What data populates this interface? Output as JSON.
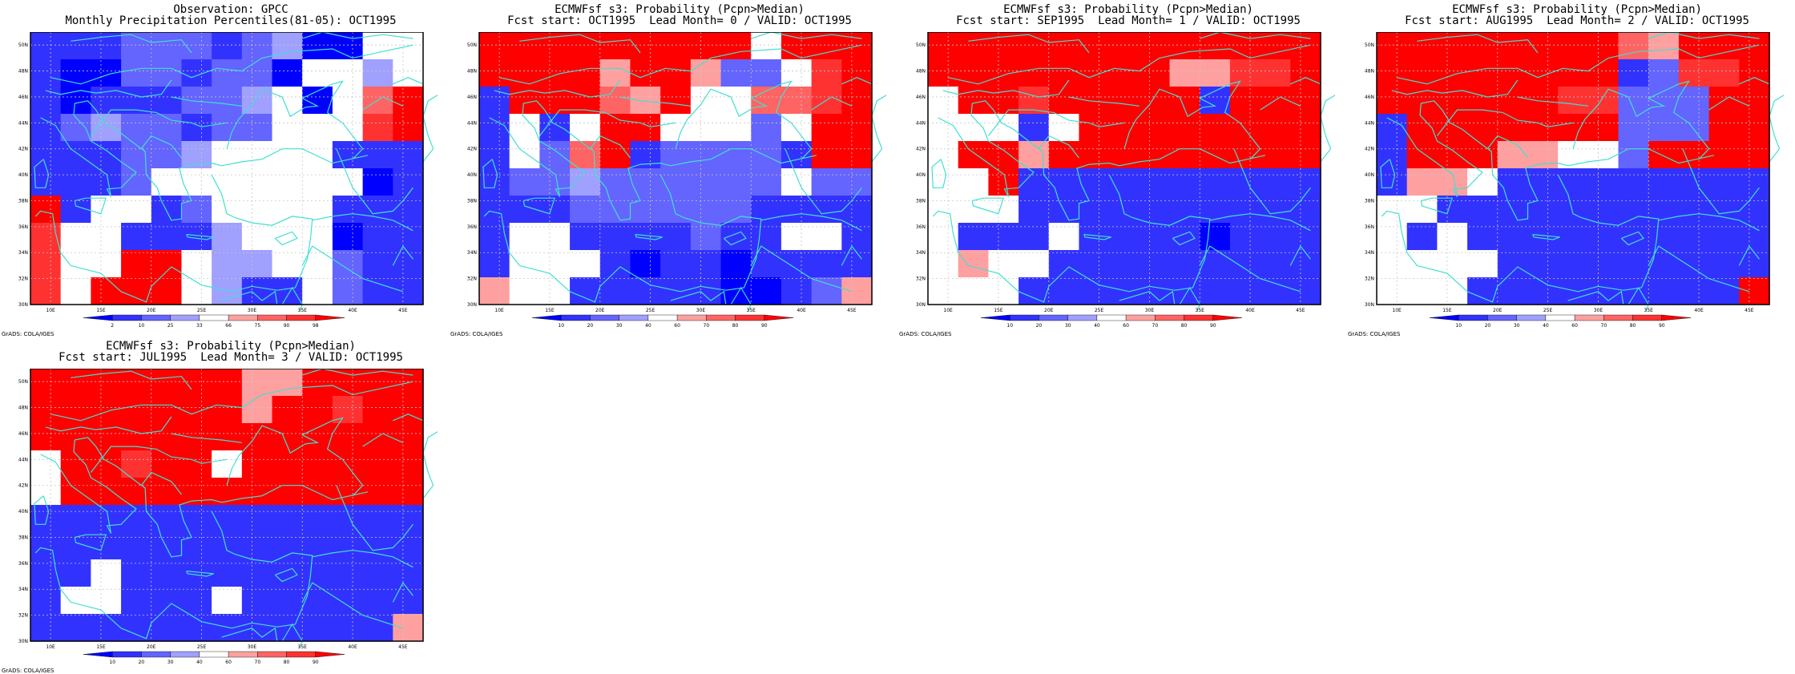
{
  "panels": [
    {
      "title1": "Observation: GPCC",
      "title2": "Monthly Precipitation Percentiles(81-05): OCT1995",
      "colorbar_labels": [
        "2",
        "10",
        "25",
        "33",
        "66",
        "75",
        "90",
        "98"
      ],
      "footer": "GrADS: COLA/IGES"
    },
    {
      "title1": "ECMWFsf s3: Probability (Pcpn>Median)",
      "title2": "Fcst start: OCT1995  Lead Month= 0 / VALID: OCT1995",
      "colorbar_labels": [
        "10",
        "20",
        "30",
        "40",
        "60",
        "70",
        "80",
        "90"
      ],
      "footer": "GrADS: COLA/IGES"
    },
    {
      "title1": "ECMWFsf s3: Probability (Pcpn>Median)",
      "title2": "Fcst start: SEP1995  Lead Month= 1 / VALID: OCT1995",
      "colorbar_labels": [
        "10",
        "20",
        "30",
        "40",
        "60",
        "70",
        "80",
        "90"
      ],
      "footer": "GrADS: COLA/IGES"
    },
    {
      "title1": "ECMWFsf s3: Probability (Pcpn>Median)",
      "title2": "Fcst start: AUG1995  Lead Month= 2 / VALID: OCT1995",
      "colorbar_labels": [
        "10",
        "20",
        "30",
        "40",
        "60",
        "70",
        "80",
        "90"
      ],
      "footer": "GrADS: COLA/IGES"
    },
    {
      "title1": "ECMWFsf s3: Probability (Pcpn>Median)",
      "title2": "Fcst start: JUL1995  Lead Month= 3 / VALID: OCT1995",
      "colorbar_labels": [
        "10",
        "20",
        "30",
        "40",
        "60",
        "70",
        "80",
        "90"
      ],
      "footer": "GrADS: COLA/IGES"
    }
  ],
  "lon_labels": [
    "10E",
    "15E",
    "20E",
    "25E",
    "30E",
    "35E",
    "40E",
    "45E"
  ],
  "lat_labels": [
    "30N",
    "32N",
    "34N",
    "36N",
    "38N",
    "40N",
    "42N",
    "44N",
    "46N",
    "48N",
    "50N"
  ],
  "palette": [
    "#0000ff",
    "#3232ff",
    "#6464ff",
    "#a0a0ff",
    "#ffffff",
    "#ffa0a0",
    "#ff6464",
    "#ff3232",
    "#ff0000"
  ],
  "coast_color": "#40e0d0",
  "grids": [
    [
      "1112221230044",
      "1002212204434",
      "1011122340468",
      "1232212244478",
      "1112234444111",
      "1112444444401",
      "8144124444111",
      "7441113444011",
      "7448843344211",
      "7488843114211"
    ],
    [
      "8888888884888",
      "8888588522478",
      "1888658446678",
      "1414884442488",
      "1426812222188",
      "1223222222422",
      "1112222221111",
      "1441111211441",
      "1444101101111",
      "5441111100125"
    ],
    [
      "8888888888888",
      "8888888855778",
      "4887888881888",
      "4441488888888",
      "4885888888888",
      "4481111111111",
      "4441111111111",
      "4111411110111",
      "4544111111111",
      "4441111111111"
    ],
    [
      "8888888865888",
      "8888888812778",
      "8888887722288",
      "1888888822288",
      "1888554428888",
      "1554111111111",
      "4411111111111",
      "4141111111111",
      "4444111111111",
      "4441111111118"
    ],
    [
      "8888888558888",
      "8888888588788",
      "8888888888888",
      "4887884888888",
      "4888888888888",
      "1111111111111",
      "1111111111111",
      "1141111111111",
      "1441114111111",
      "1111111111115"
    ]
  ]
}
